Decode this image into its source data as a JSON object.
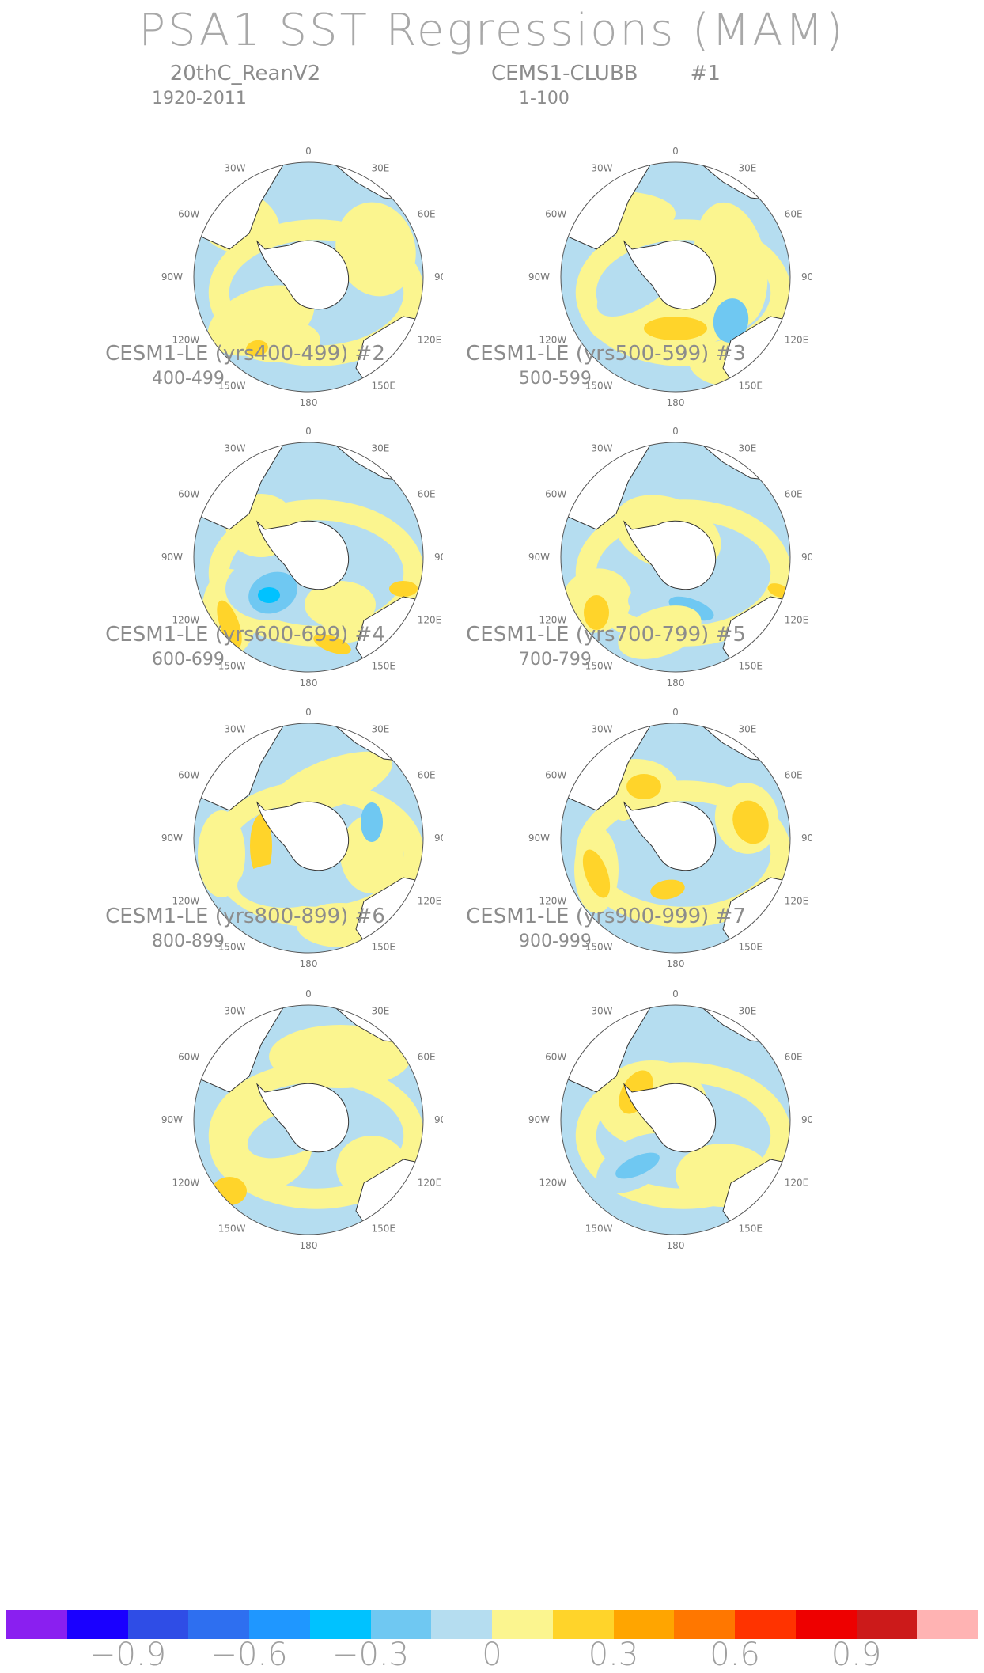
{
  "title": "PSA1 SST Regressions (MAM)",
  "colors": {
    "land": "#ffffff",
    "coast": "#333333",
    "rim": "#555555"
  },
  "colorbar": {
    "colors": [
      "#8a1ff0",
      "#1a00ff",
      "#2f4de6",
      "#2e6ff0",
      "#1f97ff",
      "#00c2ff",
      "#6fc8f2",
      "#b5ddf0",
      "#fbf58f",
      "#ffd42a",
      "#ffa500",
      "#ff7700",
      "#ff3300",
      "#ee0000",
      "#cc1a1a",
      "#ffb3b3"
    ],
    "labels": [
      "−0.9",
      "−0.6",
      "−0.3",
      "0",
      "0.3",
      "0.6",
      "0.9"
    ]
  },
  "lon_labels": {
    "top": "0",
    "nne": "30E",
    "ne": "60E",
    "e": "90E",
    "se": "120E",
    "sse": "150E",
    "bottom": "180",
    "ssw": "150W",
    "sw": "120W",
    "w": "90W",
    "nw": "60W",
    "nnw": "30W"
  },
  "panels": [
    {
      "title": "20thC_ReanV2",
      "tag": "",
      "period": "1920-2011"
    },
    {
      "title": "CEMS1-CLUBB",
      "tag": "#1",
      "period": "1-100"
    },
    {
      "title": "CESM1-LE (yrs400-499)",
      "tag": "#2",
      "period": "400-499"
    },
    {
      "title": "CESM1-LE (yrs500-599)",
      "tag": "#3",
      "period": "500-599"
    },
    {
      "title": "CESM1-LE (yrs600-699)",
      "tag": "#4",
      "period": "600-699"
    },
    {
      "title": "CESM1-LE (yrs700-799)",
      "tag": "#5",
      "period": "700-799"
    },
    {
      "title": "CESM1-LE (yrs800-899)",
      "tag": "#6",
      "period": "800-899"
    },
    {
      "title": "CESM1-LE (yrs900-999)",
      "tag": "#7",
      "period": "900-999"
    }
  ]
}
